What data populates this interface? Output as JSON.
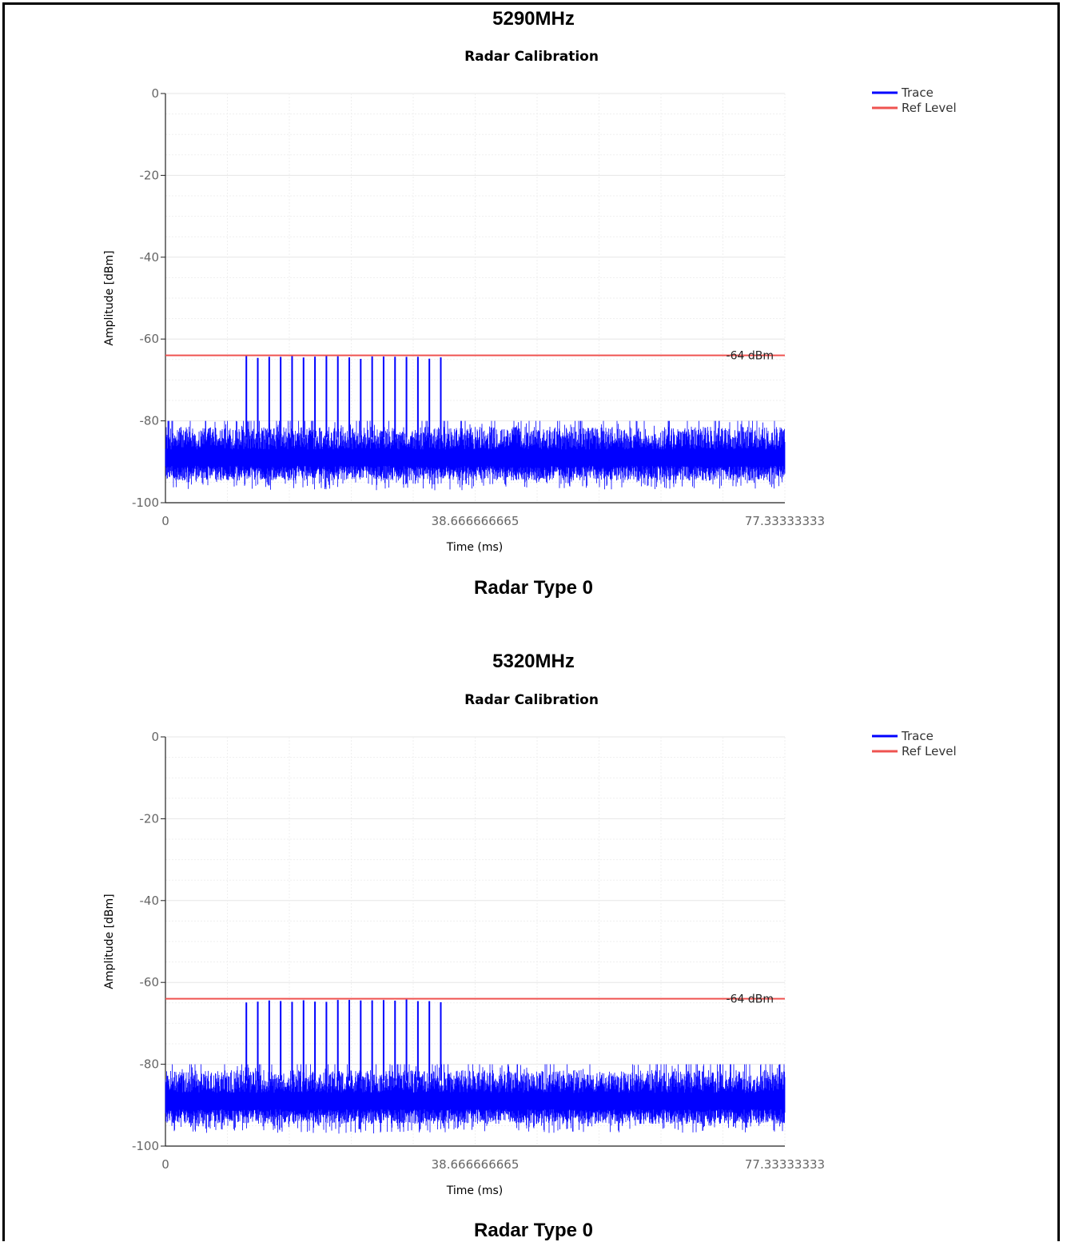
{
  "blocks": [
    {
      "frequency": "5290MHz",
      "caption": "Radar Type 0"
    },
    {
      "frequency": "5320MHz",
      "caption": "Radar Type 0"
    }
  ],
  "colors": {
    "trace": "#0000ff",
    "ref_level": "#ef5350"
  },
  "chart_data": [
    {
      "type": "line",
      "title": "Radar Calibration",
      "xlabel": "Time (ms)",
      "ylabel": "Amplitude [dBm]",
      "xlim": [
        0,
        77.33333333
      ],
      "ylim": [
        -100,
        0
      ],
      "x_ticks": [
        "0",
        "38.666666665",
        "77.33333333"
      ],
      "y_ticks": [
        "0",
        "-20",
        "-40",
        "-60",
        "-80",
        "-100"
      ],
      "grid": true,
      "legend_position": "top-right",
      "series": [
        {
          "name": "Trace",
          "color": "#0000ff",
          "noise_floor_dbm": [
            -97,
            -80
          ],
          "pulse_count": 18,
          "pulse_start_ms": 10.1,
          "pulse_spacing_ms": 1.428,
          "pulse_peak_dbm": -64.5
        },
        {
          "name": "Ref Level",
          "color": "#ef5350",
          "y": -64
        }
      ],
      "annotations": [
        "-64 dBm"
      ]
    },
    {
      "type": "line",
      "title": "Radar Calibration",
      "xlabel": "Time (ms)",
      "ylabel": "Amplitude [dBm]",
      "xlim": [
        0,
        77.33333333
      ],
      "ylim": [
        -100,
        0
      ],
      "x_ticks": [
        "0",
        "38.666666665",
        "77.33333333"
      ],
      "y_ticks": [
        "0",
        "-20",
        "-40",
        "-60",
        "-80",
        "-100"
      ],
      "grid": true,
      "legend_position": "top-right",
      "series": [
        {
          "name": "Trace",
          "color": "#0000ff",
          "noise_floor_dbm": [
            -97,
            -80
          ],
          "pulse_count": 18,
          "pulse_start_ms": 10.1,
          "pulse_spacing_ms": 1.428,
          "pulse_peak_dbm": -64.5
        },
        {
          "name": "Ref Level",
          "color": "#ef5350",
          "y": -64
        }
      ],
      "annotations": [
        "-64 dBm"
      ]
    }
  ]
}
